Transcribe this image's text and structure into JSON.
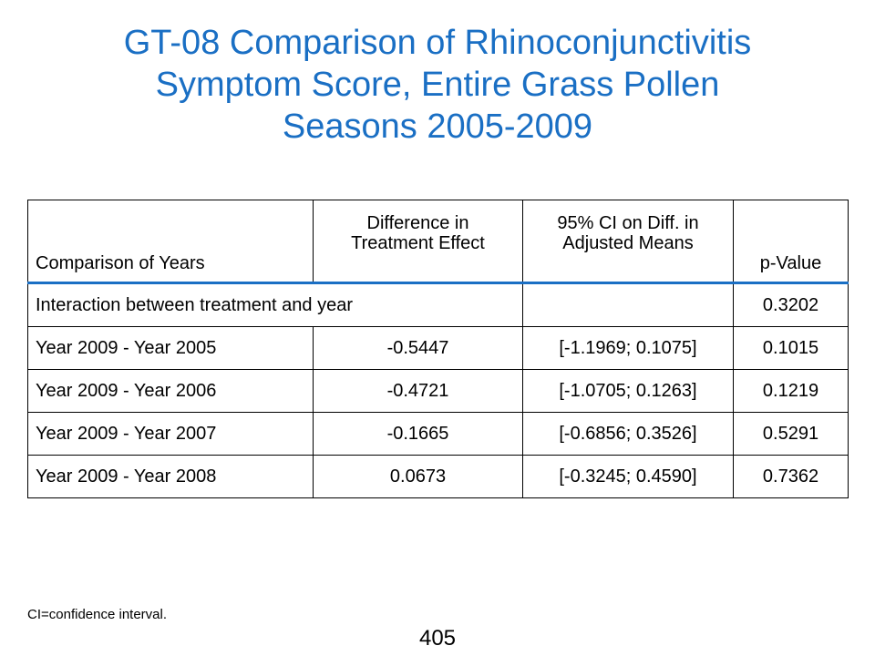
{
  "title": {
    "line1": "GT-08 Comparison of Rhinoconjunctivitis",
    "line2": "Symptom Score, Entire Grass Pollen",
    "line3": "Seasons 2005-2009"
  },
  "table": {
    "headers": {
      "comparison": "Comparison of Years",
      "difference_line1": "Difference in",
      "difference_line2": "Treatment Effect",
      "ci_line1": "95% CI on Diff. in",
      "ci_line2": "Adjusted Means",
      "pvalue": "p-Value"
    },
    "interaction": {
      "label": "Interaction between treatment and year",
      "pvalue": "0.3202"
    },
    "rows": [
      {
        "comparison": "Year 2009 - Year 2005",
        "difference": "-0.5447",
        "ci": "[-1.1969; 0.1075]",
        "pvalue": "0.1015"
      },
      {
        "comparison": "Year 2009 - Year 2006",
        "difference": "-0.4721",
        "ci": "[-1.0705; 0.1263]",
        "pvalue": "0.1219"
      },
      {
        "comparison": "Year 2009 - Year 2007",
        "difference": "-0.1665",
        "ci": "[-0.6856; 0.3526]",
        "pvalue": "0.5291"
      },
      {
        "comparison": "Year 2009 - Year 2008",
        "difference": "0.0673",
        "ci": "[-0.3245; 0.4590]",
        "pvalue": "0.7362"
      }
    ]
  },
  "footnote": "CI=confidence interval.",
  "page_number": "405",
  "colors": {
    "title": "#1a6fc4",
    "header_rule": "#1a6fc4"
  }
}
